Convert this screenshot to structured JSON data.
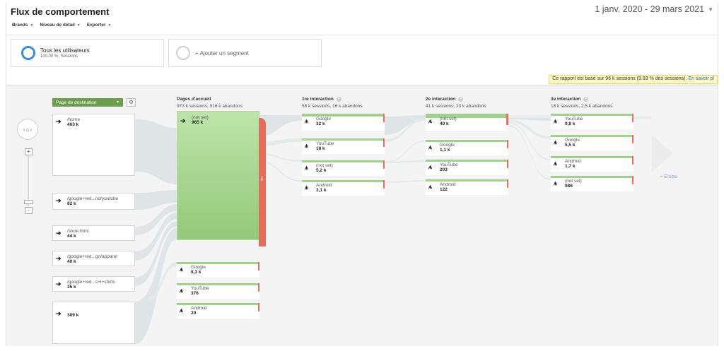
{
  "header": {
    "title": "Flux de comportement",
    "date_range": "1 janv. 2020 - 29 mars 2021",
    "menus": [
      {
        "label": "Brands"
      },
      {
        "label": "Niveau de détail"
      },
      {
        "label": "Exporter"
      }
    ]
  },
  "segments": {
    "active": {
      "title": "Tous les utilisateurs",
      "subtitle": "100,00 %, Sessions"
    },
    "add": {
      "label": "+ Ajouter un segment"
    }
  },
  "notice": {
    "text": "Ce rapport est basé sur 96 k sessions (9.83 % des sessions).",
    "link": "En savoir pl"
  },
  "flow": {
    "dimension_select": "Page de destination",
    "add_step": "+ Étape",
    "colors": {
      "green": "#9fd38c",
      "red": "#e8705c",
      "select": "#6d9e4d"
    },
    "destinations": [
      {
        "label": "/home",
        "value": "463 k"
      },
      {
        "label": "/google+red...nd/youtube",
        "value": "82 k"
      },
      {
        "label": "/store.html",
        "value": "44 k"
      },
      {
        "label": "/google+red...gn/apparel",
        "value": "40 k"
      },
      {
        "label": "/google+red...s+l+shirts",
        "value": "35 k"
      },
      {
        "label": "",
        "value": "309 k"
      }
    ],
    "columns": [
      {
        "title": "Pages d'accueil",
        "stats": "973 k sessions, 916 k abandons",
        "nodes": [
          {
            "label": "(not set)",
            "value": "965 k"
          },
          {
            "label": "Google",
            "value": "8,3 k"
          },
          {
            "label": "YouTube",
            "value": "376"
          },
          {
            "label": "Android",
            "value": "20"
          }
        ]
      },
      {
        "title": "1re interaction",
        "stats": "58 k sessions, 16 k abandons",
        "nodes": [
          {
            "label": "Google",
            "value": "32 k"
          },
          {
            "label": "YouTube",
            "value": "18 k"
          },
          {
            "label": "(not set)",
            "value": "5,2 k"
          },
          {
            "label": "Android",
            "value": "3,1 k"
          }
        ]
      },
      {
        "title": "2e interaction",
        "stats": "41 k sessions, 23 k abandons",
        "nodes": [
          {
            "label": "(not set)",
            "value": "40 k"
          },
          {
            "label": "Google",
            "value": "1,1 k"
          },
          {
            "label": "YouTube",
            "value": "203"
          },
          {
            "label": "Android",
            "value": "122"
          }
        ]
      },
      {
        "title": "3e interaction",
        "stats": "18 k sessions, 2,5 k abandons",
        "nodes": [
          {
            "label": "YouTube",
            "value": "9,8 k"
          },
          {
            "label": "Google",
            "value": "5,5 k"
          },
          {
            "label": "Android",
            "value": "1,7 k"
          },
          {
            "label": "(not set)",
            "value": "986"
          }
        ]
      }
    ]
  }
}
